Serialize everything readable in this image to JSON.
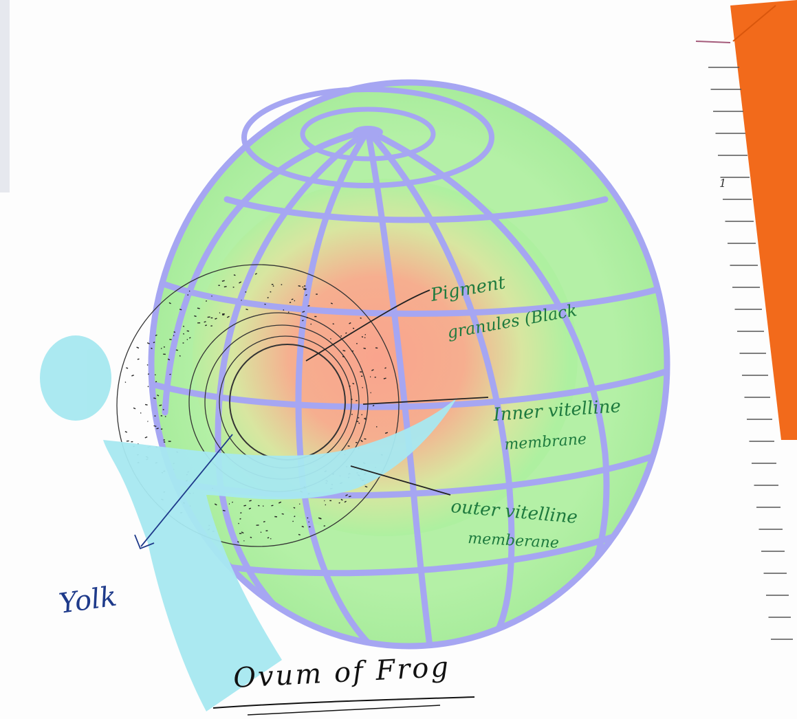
{
  "diagram": {
    "title": "Ovum of Frog",
    "labels": {
      "pigment_line1": "Pigment",
      "pigment_line2": "granules (Black",
      "inner_line1": "Inner vitelline",
      "inner_line2": "membrane",
      "outer_line1": "outer vitelline",
      "outer_line2": "memberane",
      "yolk": "Yolk"
    },
    "ruler_mark": "1"
  },
  "colors": {
    "paper": "#fdfdfd",
    "globe_fill": "#aef0a0",
    "globe_center": "#f7a58c",
    "grid_lines": "#a6a6f2",
    "logo": "#a6e8f0",
    "ink_green": "#1e7a3e",
    "ink_black": "#222222",
    "ink_blue": "#1e3a8a",
    "binder": "#f26a1b"
  }
}
